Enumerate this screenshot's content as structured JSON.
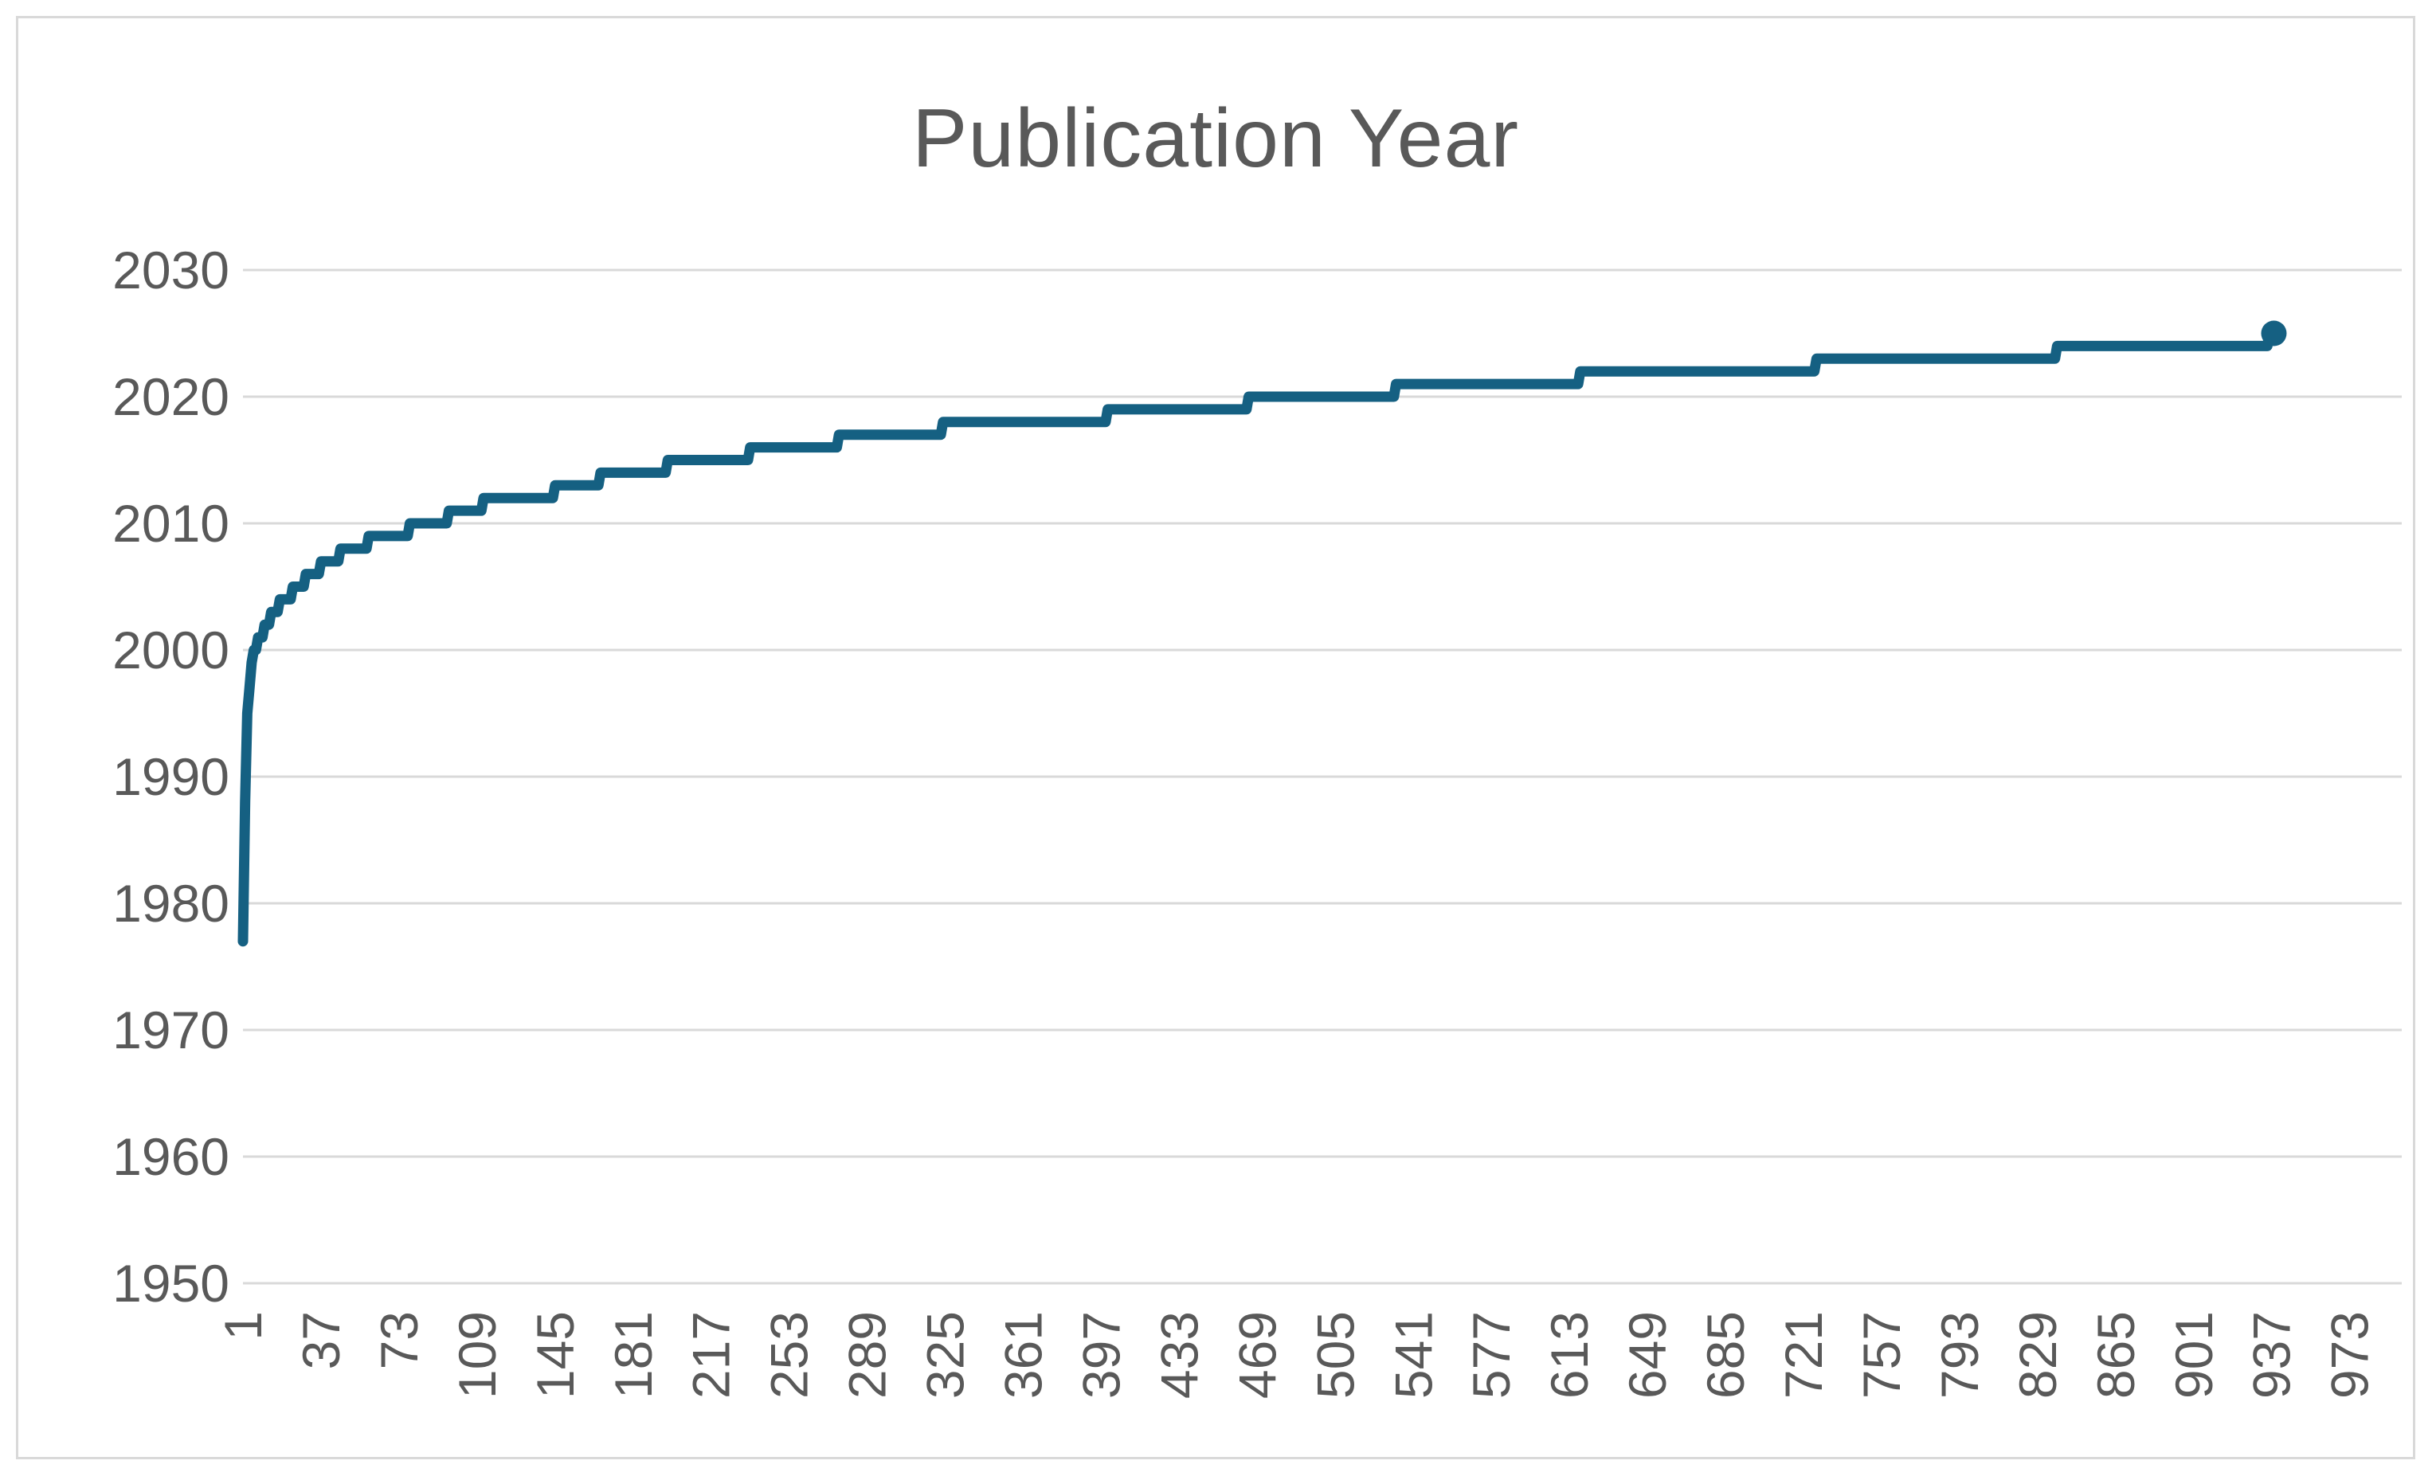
{
  "chart_data": {
    "type": "line",
    "title": "Publication Year",
    "subtitle": "",
    "legend": false,
    "grid": true,
    "x_axis": {
      "kind": "category-index",
      "tick_interval": 36,
      "tick_labels": [
        "1",
        "37",
        "73",
        "109",
        "145",
        "181",
        "217",
        "253",
        "289",
        "325",
        "361",
        "397",
        "433",
        "469",
        "505",
        "541",
        "577",
        "613",
        "649",
        "685",
        "721",
        "757",
        "793",
        "829",
        "865",
        "901",
        "937",
        "973"
      ],
      "axis_max_index": 997,
      "label_rotation_degrees": -90
    },
    "y_axis": {
      "min": 1950,
      "max": 2030,
      "step": 10,
      "tick_labels": [
        "1950",
        "1960",
        "1970",
        "1980",
        "1990",
        "2000",
        "2010",
        "2020",
        "2030"
      ]
    },
    "series": [
      {
        "name": "Publication Year",
        "color": "#156082",
        "total_points": 938,
        "end_marker": true,
        "description": "Cumulative sorted publication years; each run is {year, count} giving consecutive points at that year",
        "year_runs": [
          {
            "year": 1977,
            "count": 1
          },
          {
            "year": 1988,
            "count": 1
          },
          {
            "year": 1995,
            "count": 1
          },
          {
            "year": 1997,
            "count": 1
          },
          {
            "year": 1999,
            "count": 1
          },
          {
            "year": 2000,
            "count": 2
          },
          {
            "year": 2001,
            "count": 3
          },
          {
            "year": 2002,
            "count": 3
          },
          {
            "year": 2003,
            "count": 4
          },
          {
            "year": 2004,
            "count": 6
          },
          {
            "year": 2005,
            "count": 6
          },
          {
            "year": 2006,
            "count": 7
          },
          {
            "year": 2007,
            "count": 9
          },
          {
            "year": 2008,
            "count": 13
          },
          {
            "year": 2009,
            "count": 19
          },
          {
            "year": 2010,
            "count": 18
          },
          {
            "year": 2011,
            "count": 16
          },
          {
            "year": 2012,
            "count": 33
          },
          {
            "year": 2013,
            "count": 21
          },
          {
            "year": 2014,
            "count": 31
          },
          {
            "year": 2015,
            "count": 38
          },
          {
            "year": 2016,
            "count": 41
          },
          {
            "year": 2017,
            "count": 48
          },
          {
            "year": 2018,
            "count": 76
          },
          {
            "year": 2019,
            "count": 65
          },
          {
            "year": 2020,
            "count": 68
          },
          {
            "year": 2021,
            "count": 85
          },
          {
            "year": 2022,
            "count": 109
          },
          {
            "year": 2023,
            "count": 111
          },
          {
            "year": 2024,
            "count": 98
          },
          {
            "year": 2025,
            "count": 3
          }
        ]
      }
    ],
    "colors": {
      "line": "#156082",
      "gridline": "#d9d9d9",
      "border": "#d9d9d9",
      "text": "#595959",
      "background": "#ffffff"
    }
  }
}
